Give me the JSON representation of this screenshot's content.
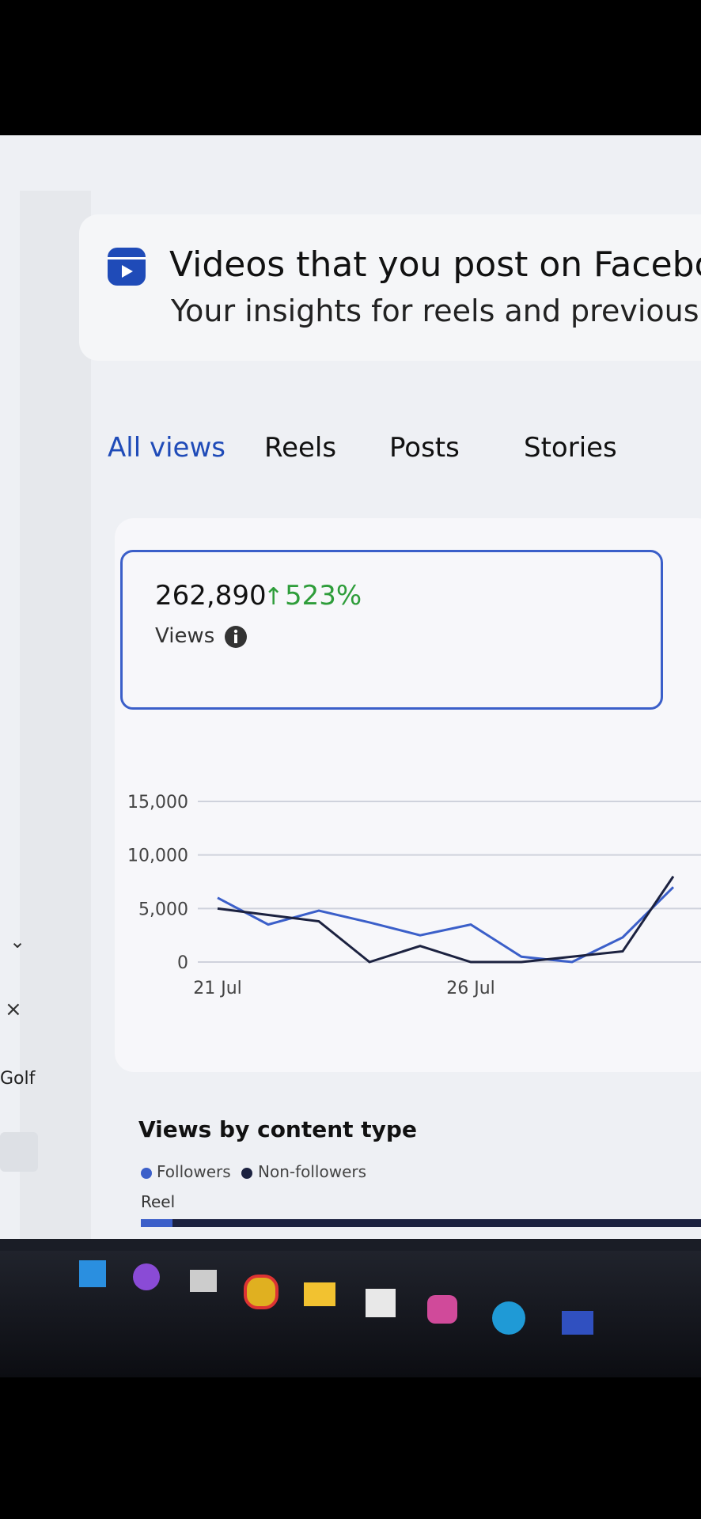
{
  "header": {
    "title": "Videos that you post on Faceboo",
    "subtitle": "Your insights for reels and previously po"
  },
  "tabs": [
    "All views",
    "Reels",
    "Posts",
    "Stories"
  ],
  "metric": {
    "value": "262,890",
    "change": "523%",
    "label": "Views"
  },
  "chart_data": {
    "type": "line",
    "categories": [
      "21 Jul",
      null,
      null,
      null,
      null,
      "26 Jul",
      null,
      null,
      null,
      null
    ],
    "series": [
      {
        "color": "#3b5fc9",
        "values": [
          6000,
          3500,
          4800,
          3700,
          2500,
          3500,
          500,
          0,
          2300,
          7000
        ]
      },
      {
        "color": "#1c2240",
        "values": [
          5000,
          4400,
          3800,
          0,
          1500,
          0,
          0,
          500,
          1000,
          8000
        ]
      }
    ],
    "ylim": [
      0,
      15000
    ],
    "yticks": [
      0,
      {
        "value": 5000,
        "label": "5,000"
      },
      {
        "value": 10000,
        "label": "10,000"
      },
      {
        "value": 15000,
        "label": "15,000"
      }
    ],
    "grid": true
  },
  "content_type": {
    "title": "Views by content type",
    "legend": [
      "Followers",
      "Non-followers"
    ],
    "category": "Reel"
  },
  "sidebar": {
    "item": "Golf"
  }
}
